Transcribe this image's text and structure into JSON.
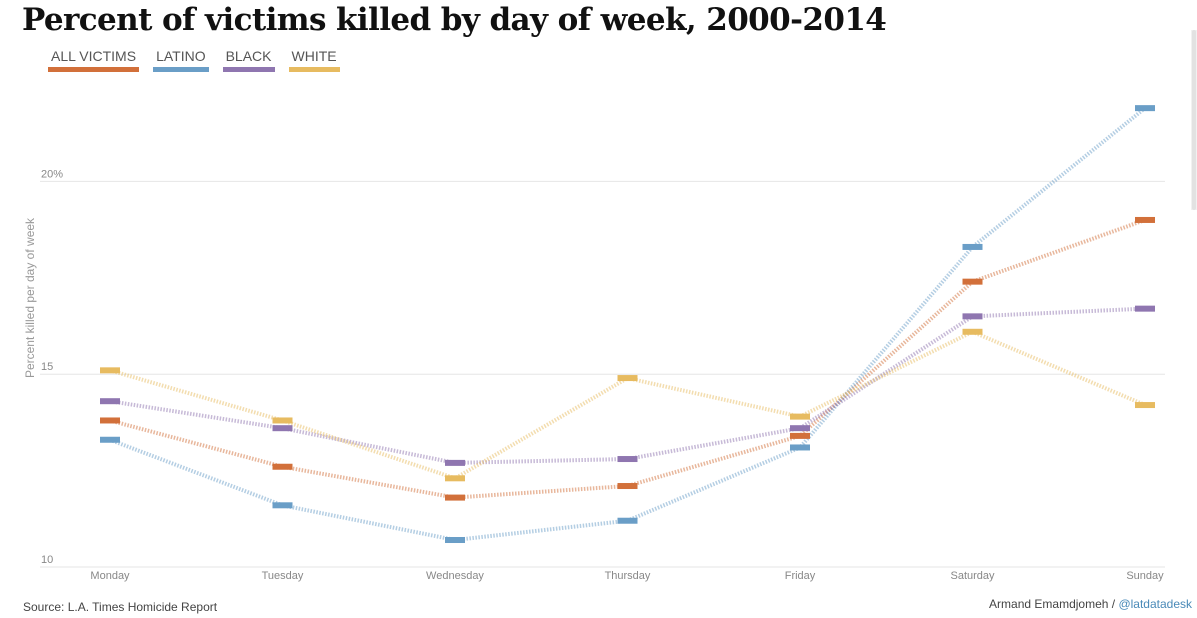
{
  "chart_data": {
    "type": "line",
    "title": "Percent of victims killed by day of week, 2000-2014",
    "ylabel": "Percent killed per day of week",
    "xlabel": "",
    "categories": [
      "Monday",
      "Tuesday",
      "Wednesday",
      "Thursday",
      "Friday",
      "Saturday",
      "Sunday"
    ],
    "ylim": [
      10,
      22.5
    ],
    "yticks": [
      {
        "value": 10,
        "label": "10"
      },
      {
        "value": 15,
        "label": "15"
      },
      {
        "value": 20,
        "label": "20%"
      }
    ],
    "grid": true,
    "legend_position": "top-left",
    "series": [
      {
        "name": "ALL VICTIMS",
        "color": "#d2703a",
        "values": [
          13.8,
          12.6,
          11.8,
          12.1,
          13.4,
          17.4,
          19.0
        ]
      },
      {
        "name": "LATINO",
        "color": "#6a9ec7",
        "values": [
          13.3,
          11.6,
          10.7,
          11.2,
          13.1,
          18.3,
          21.9
        ]
      },
      {
        "name": "BLACK",
        "color": "#8f76b0",
        "values": [
          14.3,
          13.6,
          12.7,
          12.8,
          13.6,
          16.5,
          16.7
        ]
      },
      {
        "name": "WHITE",
        "color": "#e7bb60",
        "values": [
          15.1,
          13.8,
          12.3,
          14.9,
          13.9,
          16.1,
          14.2
        ]
      }
    ]
  },
  "footer": {
    "source": "Source: L.A. Times Homicide Report",
    "credit_author": "Armand Emamdjomeh / ",
    "credit_handle": "@latdatadesk"
  }
}
